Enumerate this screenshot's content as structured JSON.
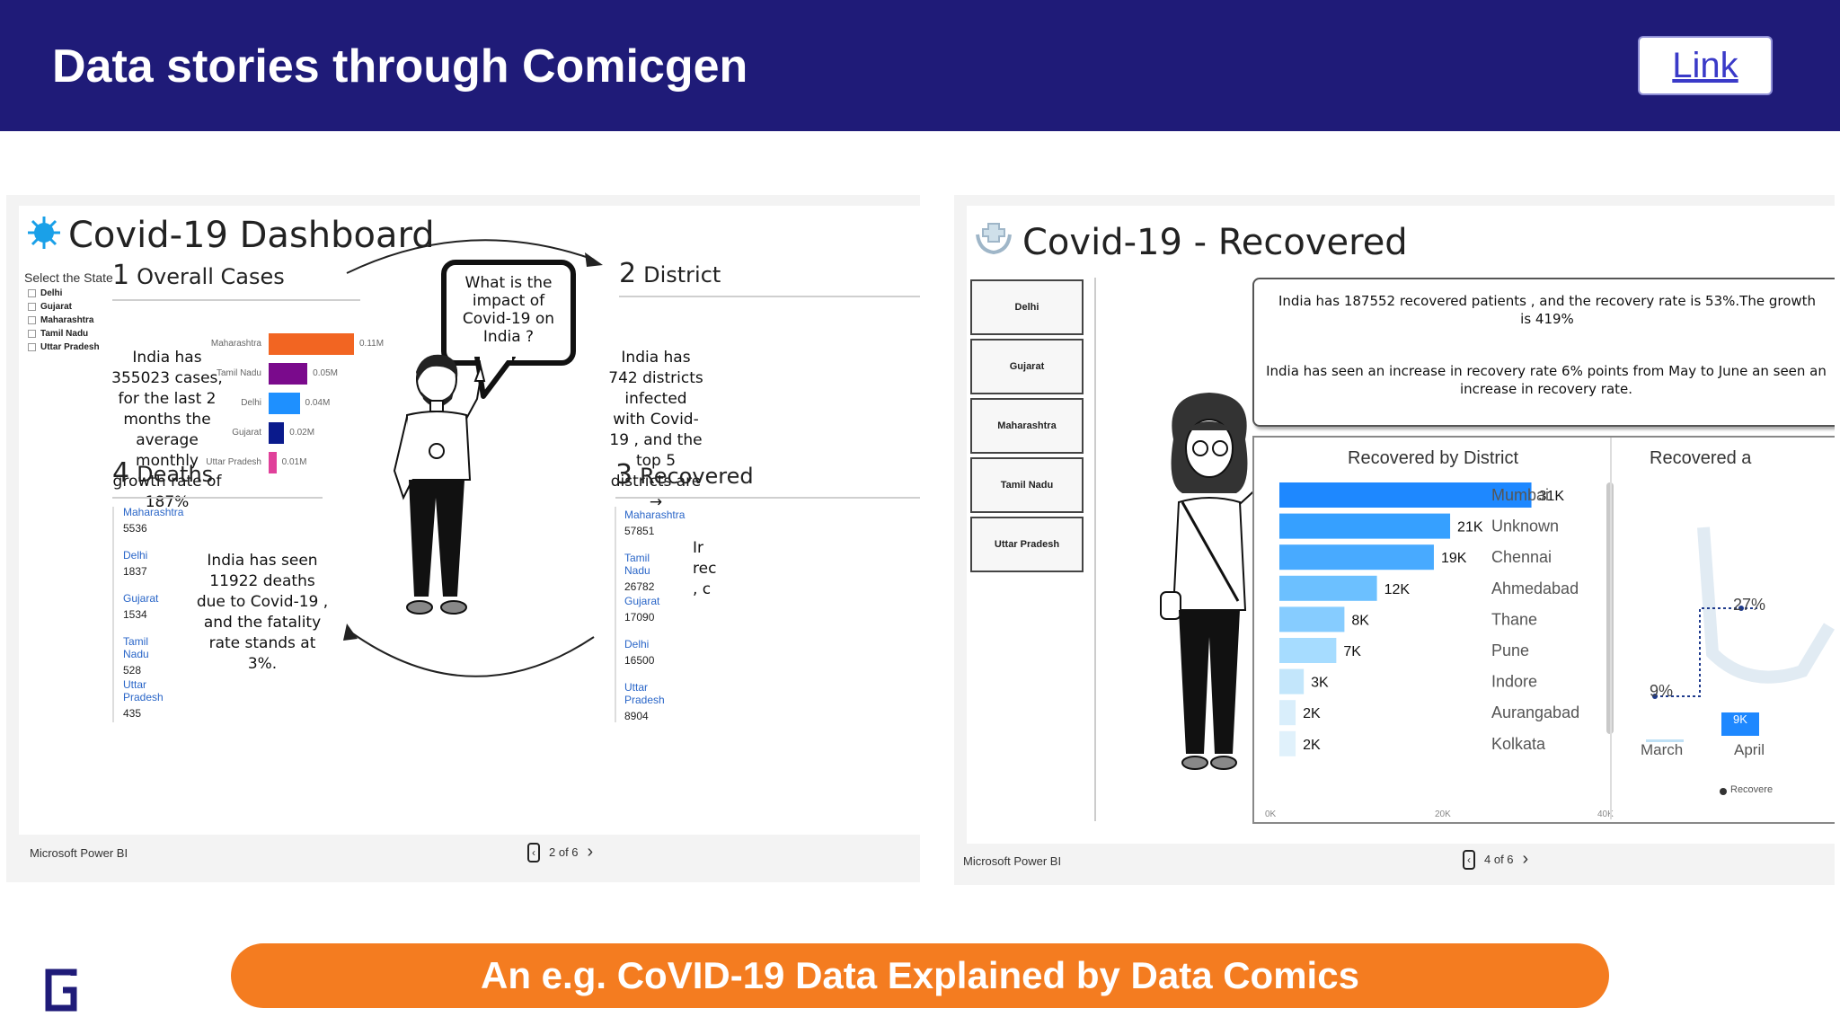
{
  "header": {
    "title": "Data stories through Comicgen",
    "link_label": "Link"
  },
  "left_report": {
    "title": "Covid-19 Dashboard",
    "slicer": {
      "heading": "Select the State",
      "states": [
        "Delhi",
        "Gujarat",
        "Maharashtra",
        "Tamil Nadu",
        "Uttar Pradesh"
      ]
    },
    "overall": {
      "number": "1",
      "title": "Overall Cases",
      "story": "India has 355023 cases, for the last 2 months the average monthly growth rate of 187%",
      "bars": [
        {
          "state": "Maharashtra",
          "value": 0.11,
          "label": "0.11M",
          "color": "#f26522"
        },
        {
          "state": "Tamil Nadu",
          "value": 0.05,
          "label": "0.05M",
          "color": "#7a0a8c"
        },
        {
          "state": "Delhi",
          "value": 0.04,
          "label": "0.04M",
          "color": "#1e90ff"
        },
        {
          "state": "Gujarat",
          "value": 0.02,
          "label": "0.02M",
          "color": "#0a1a8c"
        },
        {
          "state": "Uttar Pradesh",
          "value": 0.01,
          "label": "0.01M",
          "color": "#e0409a"
        }
      ]
    },
    "speech": "What is the impact of Covid-19 on India ?",
    "district": {
      "number": "2",
      "title": "District",
      "story": "India has 742 districts infected with Covid-19 , and the top 5 districts are →"
    },
    "deaths": {
      "number": "4",
      "title": "Deaths",
      "story": "India has seen 11922 deaths due to Covid-19 , and the fatality rate stands at 3%.",
      "items": [
        {
          "state": "Maharashtra",
          "value": "5536"
        },
        {
          "state": "Delhi",
          "value": "1837"
        },
        {
          "state": "Gujarat",
          "value": "1534"
        },
        {
          "state": "Tamil Nadu",
          "value": "528"
        },
        {
          "state": "Uttar Pradesh",
          "value": "435"
        }
      ]
    },
    "recovered": {
      "number": "3",
      "title": "Recovered",
      "fragments": [
        "Ir",
        "rec",
        ", c"
      ],
      "items": [
        {
          "state": "Maharashtra",
          "value": "57851"
        },
        {
          "state": "Tamil Nadu",
          "value": "26782"
        },
        {
          "state": "Gujarat",
          "value": "17090"
        },
        {
          "state": "Delhi",
          "value": "16500"
        },
        {
          "state": "Uttar Pradesh",
          "value": "8904"
        }
      ]
    },
    "footer_brand": "Microsoft Power BI",
    "page": "2 of 6"
  },
  "right_report": {
    "title": "Covid-19 - Recovered",
    "states": [
      "Delhi",
      "Gujarat",
      "Maharashtra",
      "Tamil Nadu",
      "Uttar Pradesh"
    ],
    "info1": "India has 187552 recovered patients , and the recovery rate is 53%.The growth is 419%",
    "info2": "India has seen an increase in recovery rate 6% points from May to June an seen an increase in recovery rate.",
    "chart_title": "Recovered by District",
    "chart2_title": "Recovered a",
    "ticks": [
      "0K",
      "20K",
      "40K"
    ],
    "line_labels": {
      "march_pct": "9%",
      "april_pct": "27%",
      "april_val": "9K",
      "x1": "March",
      "x2": "April",
      "legend": "Recovere"
    },
    "footer_brand": "Microsoft Power BI",
    "page": "4 of 6"
  },
  "chart_data": {
    "type": "bar",
    "title": "Recovered by District",
    "categories": [
      "Mumbai",
      "Unknown",
      "Chennai",
      "Ahmedabad",
      "Thane",
      "Pune",
      "Indore",
      "Aurangabad",
      "Kolkata"
    ],
    "values": [
      31,
      21,
      19,
      12,
      8,
      7,
      3,
      2,
      2
    ],
    "labels": [
      "31K",
      "21K",
      "19K",
      "12K",
      "8K",
      "7K",
      "3K",
      "2K",
      "2K"
    ],
    "xlim": [
      0,
      40
    ],
    "colors": [
      "#1e88ff",
      "#36a0ff",
      "#48aaff",
      "#6cc0ff",
      "#86ccff",
      "#a6dcff",
      "#c3e6fb",
      "#d9eefb",
      "#e0f1fb"
    ]
  },
  "banner": {
    "text": "An e.g. CoVID-19 Data Explained by Data Comics"
  }
}
